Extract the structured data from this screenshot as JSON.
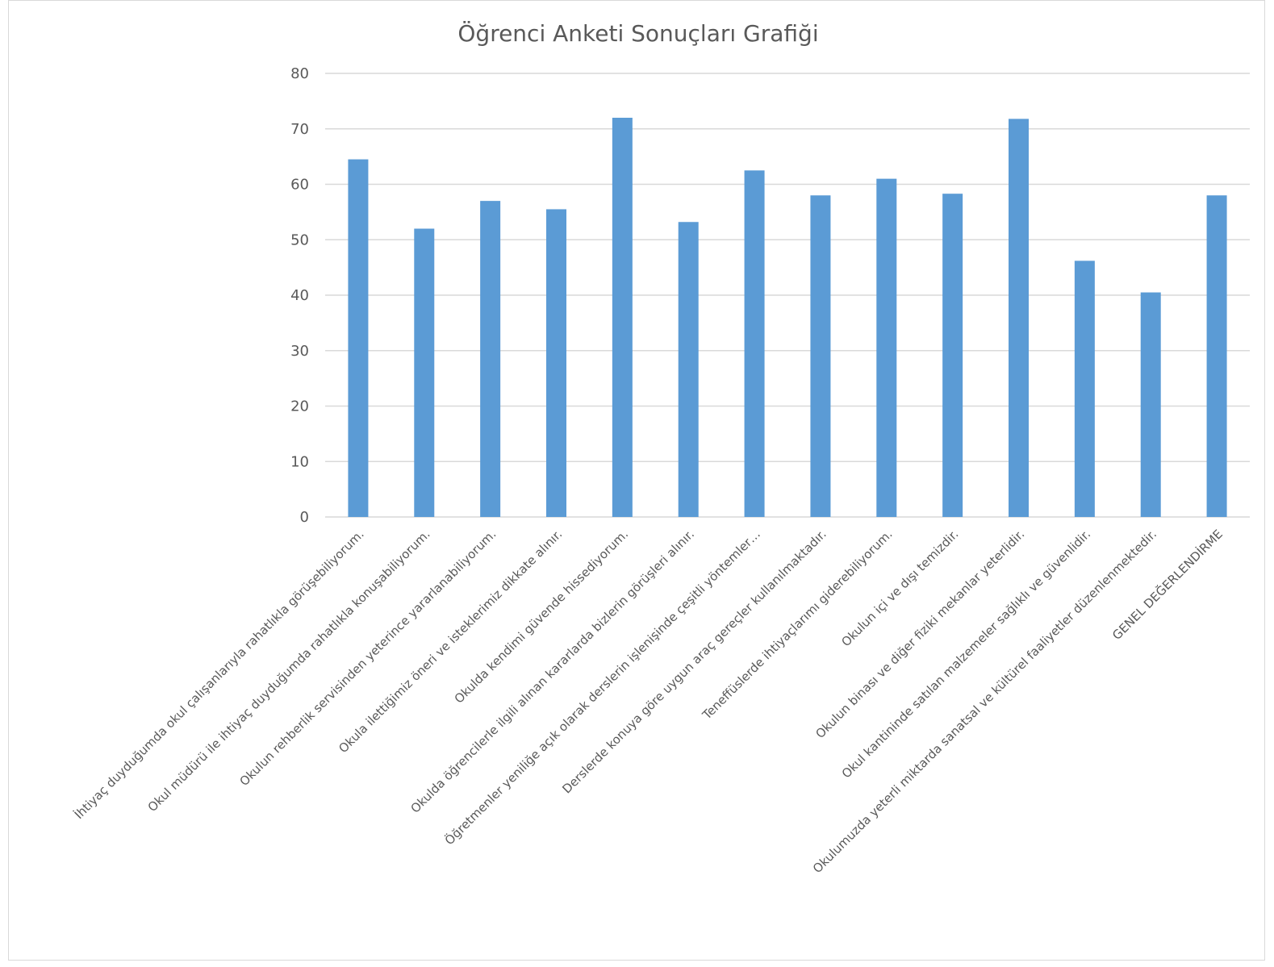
{
  "chart_data": {
    "type": "bar",
    "title": "Öğrenci Anketi Sonuçları Grafiği",
    "xlabel": "",
    "ylabel": "",
    "ylim": [
      0,
      80
    ],
    "yticks": [
      0,
      10,
      20,
      30,
      40,
      50,
      60,
      70,
      80
    ],
    "grid": true,
    "legend": "none",
    "color": "#5b9bd5",
    "categories": [
      "İhtiyaç duyduğumda okul çalışanlarıyla rahatlıkla görüşebiliyorum.",
      "Okul müdürü ile ihtiyaç duyduğumda rahatlıkla konuşabiliyorum.",
      "Okulun rehberlik servisinden yeterince yararlanabiliyorum.",
      "Okula ilettiğimiz öneri ve isteklerimiz dikkate alınır.",
      "Okulda kendimi güvende hissediyorum.",
      "Okulda öğrencilerle ilgili alınan kararlarda bizlerin görüşleri alınır.",
      "Öğretmenler yeniliğe açık olarak derslerin işlenişinde çeşitli yöntemler…",
      "Derslerde konuya göre uygun araç gereçler kullanılmaktadır.",
      "Teneffüslerde ihtiyaçlarımı giderebiliyorum.",
      "Okulun içi ve dışı temizdir.",
      "Okulun binası ve diğer fiziki mekanlar yeterlidir.",
      "Okul kantininde satılan malzemeler sağlıklı ve güvenlidir.",
      "Okulumuzda yeterli miktarda sanatsal ve kültürel faaliyetler düzenlenmektedir.",
      "GENEL DEĞERLENDİRME"
    ],
    "values": [
      64.5,
      52,
      57,
      55.5,
      72,
      53.2,
      62.5,
      58,
      61,
      58.3,
      71.8,
      46.2,
      40.5,
      58
    ]
  }
}
